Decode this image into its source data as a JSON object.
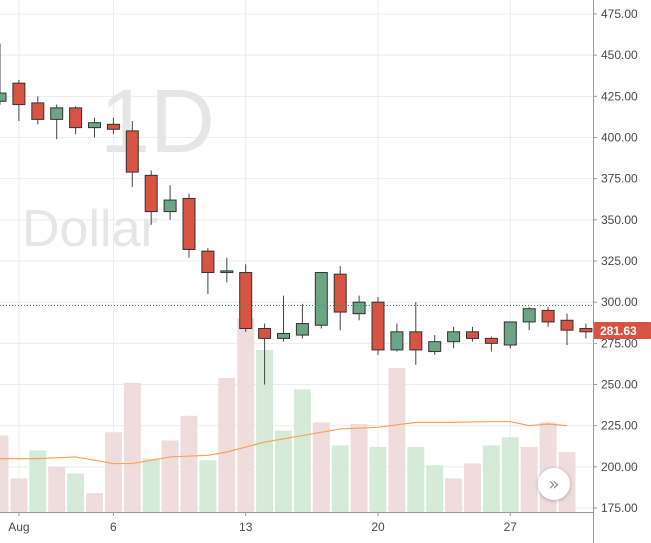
{
  "watermark": {
    "interval": "1D",
    "currency": "Dollar"
  },
  "current_price_label": "281.63",
  "scroll_button_glyph": "»",
  "colors": {
    "up": "#6ba583",
    "down": "#d75442",
    "volume_up": "#d6ead9",
    "volume_down": "#efdcdc",
    "ma_line": "#f7a35c",
    "price_line": "#3c8a5f",
    "price_tag": "#d75442"
  },
  "chart_data": {
    "type": "candlestick",
    "title": "",
    "xlabel": "",
    "ylabel": "",
    "ylim": [
      170,
      480
    ],
    "grid": true,
    "y_ticks": [
      "475.00",
      "450.00",
      "425.00",
      "400.00",
      "375.00",
      "350.00",
      "325.00",
      "300.00",
      "275.00",
      "250.00",
      "225.00",
      "200.00",
      "175.00"
    ],
    "x_tick_labels": [
      {
        "day": 1,
        "label": "Aug"
      },
      {
        "day": 6,
        "label": "6"
      },
      {
        "day": 13,
        "label": "13"
      },
      {
        "day": 20,
        "label": "20"
      },
      {
        "day": 27,
        "label": "27"
      }
    ],
    "current_price": 281.63,
    "price_line_value": 298,
    "candles": [
      {
        "day": 0,
        "open": 422,
        "high": 457,
        "low": 420,
        "close": 427
      },
      {
        "day": 1,
        "open": 433,
        "high": 435,
        "low": 410,
        "close": 420
      },
      {
        "day": 2,
        "open": 421,
        "high": 425,
        "low": 408,
        "close": 411
      },
      {
        "day": 3,
        "open": 411,
        "high": 420,
        "low": 399,
        "close": 418
      },
      {
        "day": 4,
        "open": 418,
        "high": 419,
        "low": 402,
        "close": 406
      },
      {
        "day": 5,
        "open": 406,
        "high": 412,
        "low": 400,
        "close": 409
      },
      {
        "day": 6,
        "open": 408,
        "high": 412,
        "low": 402,
        "close": 405
      },
      {
        "day": 7,
        "open": 404,
        "high": 410,
        "low": 370,
        "close": 379
      },
      {
        "day": 8,
        "open": 377,
        "high": 380,
        "low": 347,
        "close": 355
      },
      {
        "day": 9,
        "open": 355,
        "high": 371,
        "low": 350,
        "close": 362
      },
      {
        "day": 10,
        "open": 363,
        "high": 366,
        "low": 327,
        "close": 332
      },
      {
        "day": 11,
        "open": 331,
        "high": 333,
        "low": 305,
        "close": 318
      },
      {
        "day": 12,
        "open": 318,
        "high": 327,
        "low": 312,
        "close": 319
      },
      {
        "day": 13,
        "open": 318,
        "high": 323,
        "low": 282,
        "close": 284
      },
      {
        "day": 14,
        "open": 284,
        "high": 287,
        "low": 250,
        "close": 278
      },
      {
        "day": 15,
        "open": 278,
        "high": 304,
        "low": 276,
        "close": 281
      },
      {
        "day": 16,
        "open": 280,
        "high": 299,
        "low": 278,
        "close": 287
      },
      {
        "day": 17,
        "open": 286,
        "high": 318,
        "low": 284,
        "close": 318
      },
      {
        "day": 18,
        "open": 317,
        "high": 322,
        "low": 283,
        "close": 294
      },
      {
        "day": 19,
        "open": 293,
        "high": 304,
        "low": 289,
        "close": 300
      },
      {
        "day": 20,
        "open": 300,
        "high": 303,
        "low": 268,
        "close": 271
      },
      {
        "day": 21,
        "open": 271,
        "high": 287,
        "low": 270,
        "close": 282
      },
      {
        "day": 22,
        "open": 282,
        "high": 300,
        "low": 262,
        "close": 271
      },
      {
        "day": 23,
        "open": 270,
        "high": 280,
        "low": 268,
        "close": 276
      },
      {
        "day": 24,
        "open": 276,
        "high": 285,
        "low": 272,
        "close": 282
      },
      {
        "day": 25,
        "open": 282,
        "high": 285,
        "low": 276,
        "close": 278
      },
      {
        "day": 26,
        "open": 278,
        "high": 279,
        "low": 270,
        "close": 275
      },
      {
        "day": 27,
        "open": 274,
        "high": 288,
        "low": 272,
        "close": 288
      },
      {
        "day": 28,
        "open": 288,
        "high": 297,
        "low": 283,
        "close": 296
      },
      {
        "day": 29,
        "open": 295,
        "high": 297,
        "low": 285,
        "close": 288
      },
      {
        "day": 30,
        "open": 289,
        "high": 293,
        "low": 274,
        "close": 283
      },
      {
        "day": 31,
        "open": 284,
        "high": 287,
        "low": 278,
        "close": 282
      }
    ],
    "volume": [
      {
        "day": 0,
        "value": 219,
        "direction": "down"
      },
      {
        "day": 1,
        "value": 193,
        "direction": "down"
      },
      {
        "day": 2,
        "value": 210,
        "direction": "up"
      },
      {
        "day": 3,
        "value": 200,
        "direction": "down"
      },
      {
        "day": 4,
        "value": 196,
        "direction": "up"
      },
      {
        "day": 5,
        "value": 184,
        "direction": "down"
      },
      {
        "day": 6,
        "value": 221,
        "direction": "down"
      },
      {
        "day": 7,
        "value": 251,
        "direction": "down"
      },
      {
        "day": 8,
        "value": 205,
        "direction": "up"
      },
      {
        "day": 9,
        "value": 216,
        "direction": "down"
      },
      {
        "day": 10,
        "value": 231,
        "direction": "down"
      },
      {
        "day": 11,
        "value": 204,
        "direction": "up"
      },
      {
        "day": 12,
        "value": 254,
        "direction": "down"
      },
      {
        "day": 13,
        "value": 290,
        "direction": "down"
      },
      {
        "day": 14,
        "value": 271,
        "direction": "up"
      },
      {
        "day": 15,
        "value": 222,
        "direction": "up"
      },
      {
        "day": 16,
        "value": 247,
        "direction": "up"
      },
      {
        "day": 17,
        "value": 227,
        "direction": "down"
      },
      {
        "day": 18,
        "value": 213,
        "direction": "up"
      },
      {
        "day": 19,
        "value": 226,
        "direction": "down"
      },
      {
        "day": 20,
        "value": 212,
        "direction": "up"
      },
      {
        "day": 21,
        "value": 260,
        "direction": "down"
      },
      {
        "day": 22,
        "value": 212,
        "direction": "up"
      },
      {
        "day": 23,
        "value": 201,
        "direction": "up"
      },
      {
        "day": 24,
        "value": 193,
        "direction": "down"
      },
      {
        "day": 25,
        "value": 202,
        "direction": "down"
      },
      {
        "day": 26,
        "value": 213,
        "direction": "up"
      },
      {
        "day": 27,
        "value": 218,
        "direction": "up"
      },
      {
        "day": 28,
        "value": 212,
        "direction": "down"
      },
      {
        "day": 29,
        "value": 227,
        "direction": "down"
      },
      {
        "day": 30,
        "value": 209,
        "direction": "down"
      }
    ],
    "volume_ma": [
      {
        "day": 0,
        "value": 205
      },
      {
        "day": 2,
        "value": 205
      },
      {
        "day": 4,
        "value": 206
      },
      {
        "day": 6,
        "value": 202
      },
      {
        "day": 7,
        "value": 202
      },
      {
        "day": 9,
        "value": 206
      },
      {
        "day": 11,
        "value": 207
      },
      {
        "day": 12,
        "value": 209
      },
      {
        "day": 14,
        "value": 215
      },
      {
        "day": 16,
        "value": 219
      },
      {
        "day": 18,
        "value": 223
      },
      {
        "day": 20,
        "value": 224
      },
      {
        "day": 22,
        "value": 227
      },
      {
        "day": 24,
        "value": 227
      },
      {
        "day": 26,
        "value": 227.5
      },
      {
        "day": 27,
        "value": 227.5
      },
      {
        "day": 28,
        "value": 225
      },
      {
        "day": 29,
        "value": 226
      },
      {
        "day": 30,
        "value": 225
      }
    ]
  }
}
